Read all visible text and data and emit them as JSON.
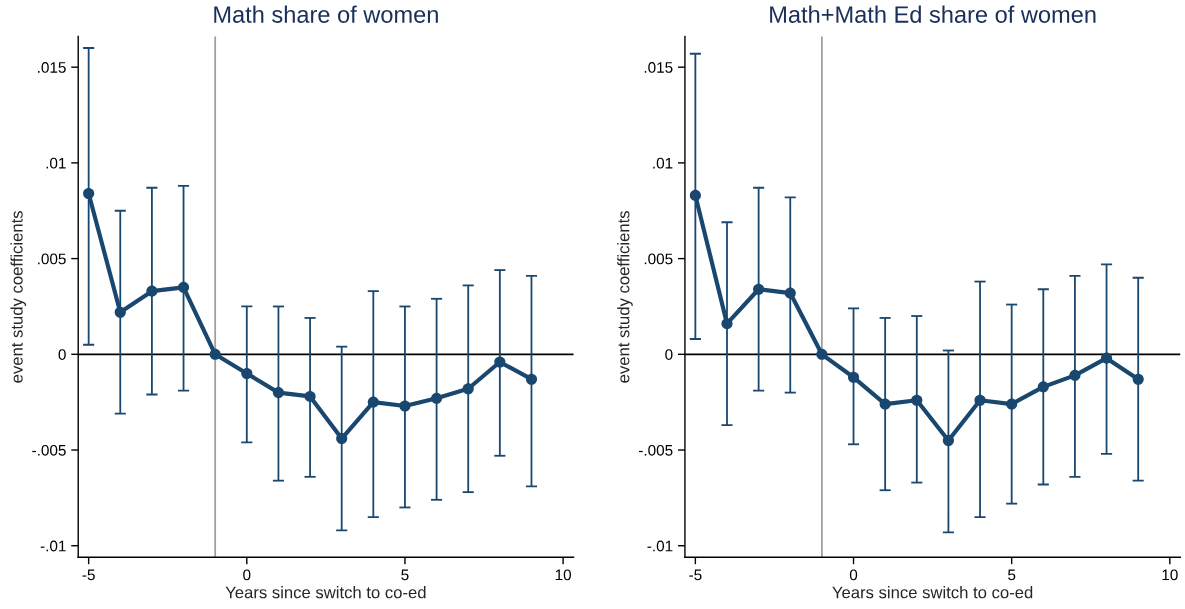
{
  "chart_data": [
    {
      "type": "line",
      "title": "Math share of women",
      "xlabel": "Years since switch to co-ed",
      "ylabel": "event study coefficients",
      "x": [
        -5,
        -4,
        -3,
        -2,
        -1,
        0,
        1,
        2,
        3,
        4,
        5,
        6,
        7,
        8,
        9
      ],
      "series": [
        {
          "color": "#1a476f",
          "values": [
            0.0084,
            0.0022,
            0.0033,
            0.0035,
            0,
            -0.001,
            -0.002,
            -0.0022,
            -0.0044,
            -0.0025,
            -0.0027,
            -0.0023,
            -0.0018,
            -0.0004,
            -0.0013
          ],
          "errors": [
            [
              0.0005,
              0.016
            ],
            [
              -0.0031,
              0.0075
            ],
            [
              -0.0021,
              0.0087
            ],
            [
              -0.0019,
              0.0088
            ],
            null,
            [
              -0.0046,
              0.0025
            ],
            [
              -0.0066,
              0.0025
            ],
            [
              -0.0064,
              0.0019
            ],
            [
              -0.0092,
              0.0004
            ],
            [
              -0.0085,
              0.0033
            ],
            [
              -0.008,
              0.0025
            ],
            [
              -0.0076,
              0.0029
            ],
            [
              -0.0072,
              0.0036
            ],
            [
              -0.0053,
              0.0044
            ],
            [
              -0.0069,
              0.0041
            ]
          ]
        }
      ],
      "xlim": [
        -5.33,
        10.33
      ],
      "ylim": [
        -0.0106,
        0.0166
      ],
      "xticks": [
        -5,
        0,
        5,
        10
      ],
      "yticks": [
        {
          "value": -0.01,
          "label": "-.01"
        },
        {
          "value": -0.005,
          "label": "-.005"
        },
        0,
        {
          "value": 0.005,
          "label": ".005"
        },
        {
          "value": 0.01,
          "label": ".01"
        },
        {
          "value": 0.015,
          "label": ".015"
        }
      ],
      "ref_lines": [
        {
          "axis": "y",
          "value": 0,
          "color": "#000000"
        },
        {
          "axis": "x",
          "value": -1,
          "color": "#a0a0a0"
        }
      ],
      "marker": "circle",
      "grid": false,
      "legend": false
    },
    {
      "type": "line",
      "title": "Math+Math Ed share of women",
      "xlabel": "Years since switch to co-ed",
      "ylabel": "event study coefficients",
      "x": [
        -5,
        -4,
        -3,
        -2,
        -1,
        0,
        1,
        2,
        3,
        4,
        5,
        6,
        7,
        8,
        9
      ],
      "series": [
        {
          "color": "#1a476f",
          "values": [
            0.0083,
            0.0016,
            0.0034,
            0.0032,
            0,
            -0.0012,
            -0.0026,
            -0.0024,
            -0.0045,
            -0.0024,
            -0.0026,
            -0.0017,
            -0.0011,
            -0.0002,
            -0.0013
          ],
          "errors": [
            [
              0.0008,
              0.0157
            ],
            [
              -0.0037,
              0.0069
            ],
            [
              -0.0019,
              0.0087
            ],
            [
              -0.002,
              0.0082
            ],
            null,
            [
              -0.0047,
              0.0024
            ],
            [
              -0.0071,
              0.0019
            ],
            [
              -0.0067,
              0.002
            ],
            [
              -0.0093,
              0.0002
            ],
            [
              -0.0085,
              0.0038
            ],
            [
              -0.0078,
              0.0026
            ],
            [
              -0.0068,
              0.0034
            ],
            [
              -0.0064,
              0.0041
            ],
            [
              -0.0052,
              0.0047
            ],
            [
              -0.0066,
              0.004
            ]
          ]
        }
      ],
      "xlim": [
        -5.33,
        10.33
      ],
      "ylim": [
        -0.0106,
        0.0166
      ],
      "xticks": [
        -5,
        0,
        5,
        10
      ],
      "yticks": [
        {
          "value": -0.01,
          "label": "-.01"
        },
        {
          "value": -0.005,
          "label": "-.005"
        },
        0,
        {
          "value": 0.005,
          "label": ".005"
        },
        {
          "value": 0.01,
          "label": ".01"
        },
        {
          "value": 0.015,
          "label": ".015"
        }
      ],
      "ref_lines": [
        {
          "axis": "y",
          "value": 0,
          "color": "#000000"
        },
        {
          "axis": "x",
          "value": -1,
          "color": "#a0a0a0"
        }
      ],
      "marker": "circle",
      "grid": false,
      "legend": false
    }
  ]
}
